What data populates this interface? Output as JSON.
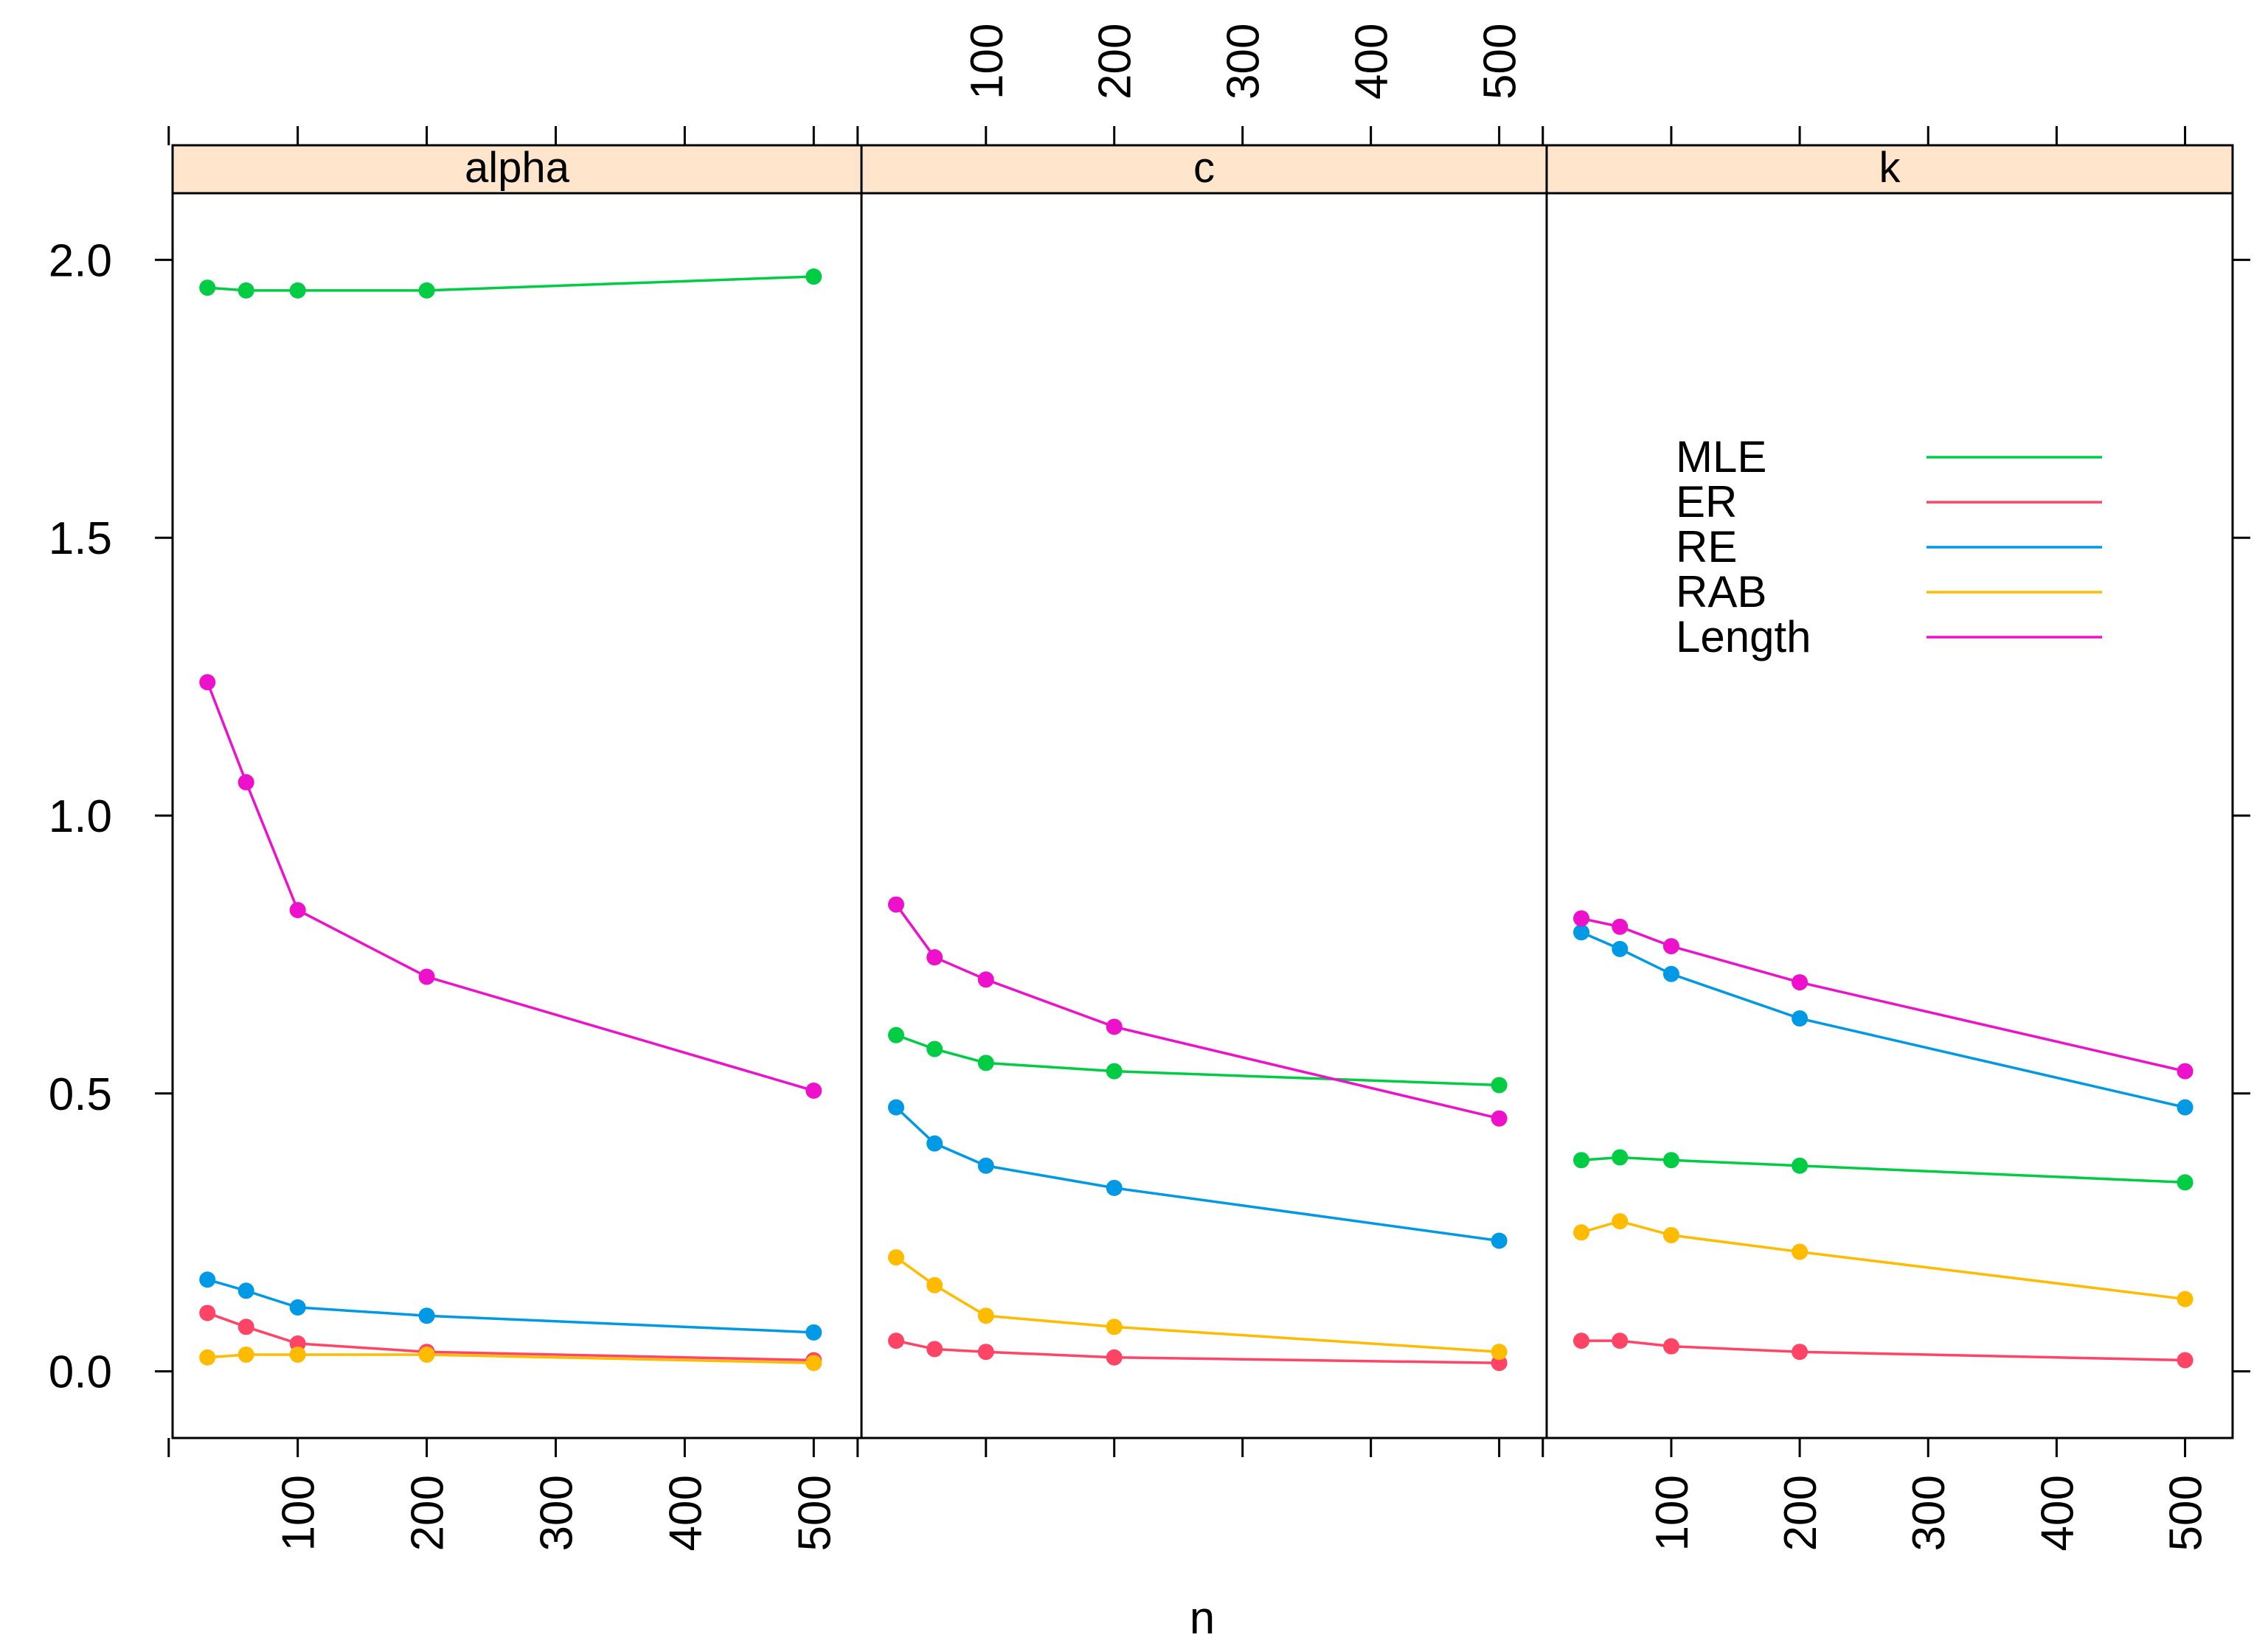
{
  "chart_data": {
    "type": "line",
    "xlabel": "n",
    "x": [
      30,
      60,
      100,
      200,
      500
    ],
    "xlim": [
      3,
      537
    ],
    "ylim": [
      -0.12,
      2.12
    ],
    "x_ticks": [
      "100",
      "200",
      "300",
      "400",
      "500"
    ],
    "y_ticks": [
      "0.0",
      "0.5",
      "1.0",
      "1.5",
      "2.0"
    ],
    "legend": [
      {
        "name": "MLE",
        "color": "#00cc44"
      },
      {
        "name": "ER",
        "color": "#ff4466"
      },
      {
        "name": "RE",
        "color": "#0099e6"
      },
      {
        "name": "RAB",
        "color": "#ffbb00"
      },
      {
        "name": "Length",
        "color": "#ee11cc"
      }
    ],
    "legend_position": "inside right panel, upper area",
    "panels": [
      {
        "title": "alpha",
        "series": [
          {
            "name": "MLE",
            "values": [
              1.95,
              1.945,
              1.945,
              1.945,
              1.97
            ]
          },
          {
            "name": "ER",
            "values": [
              0.105,
              0.08,
              0.05,
              0.035,
              0.02
            ]
          },
          {
            "name": "RE",
            "values": [
              0.165,
              0.145,
              0.115,
              0.1,
              0.07
            ]
          },
          {
            "name": "RAB",
            "values": [
              0.025,
              0.03,
              0.03,
              0.03,
              0.015
            ]
          },
          {
            "name": "Length",
            "values": [
              1.24,
              1.06,
              0.83,
              0.71,
              0.505
            ]
          }
        ]
      },
      {
        "title": "c",
        "series": [
          {
            "name": "MLE",
            "values": [
              0.605,
              0.58,
              0.555,
              0.54,
              0.515
            ]
          },
          {
            "name": "ER",
            "values": [
              0.055,
              0.04,
              0.035,
              0.025,
              0.015
            ]
          },
          {
            "name": "RE",
            "values": [
              0.475,
              0.41,
              0.37,
              0.33,
              0.235
            ]
          },
          {
            "name": "RAB",
            "values": [
              0.205,
              0.155,
              0.1,
              0.08,
              0.035
            ]
          },
          {
            "name": "Length",
            "values": [
              0.84,
              0.745,
              0.705,
              0.62,
              0.455
            ]
          }
        ]
      },
      {
        "title": "k",
        "series": [
          {
            "name": "MLE",
            "values": [
              0.38,
              0.385,
              0.38,
              0.37,
              0.34
            ]
          },
          {
            "name": "ER",
            "values": [
              0.055,
              0.055,
              0.045,
              0.035,
              0.02
            ]
          },
          {
            "name": "RE",
            "values": [
              0.79,
              0.76,
              0.715,
              0.635,
              0.475
            ]
          },
          {
            "name": "RAB",
            "values": [
              0.25,
              0.27,
              0.245,
              0.215,
              0.13
            ]
          },
          {
            "name": "Length",
            "values": [
              0.815,
              0.8,
              0.765,
              0.7,
              0.54
            ]
          }
        ]
      }
    ]
  }
}
